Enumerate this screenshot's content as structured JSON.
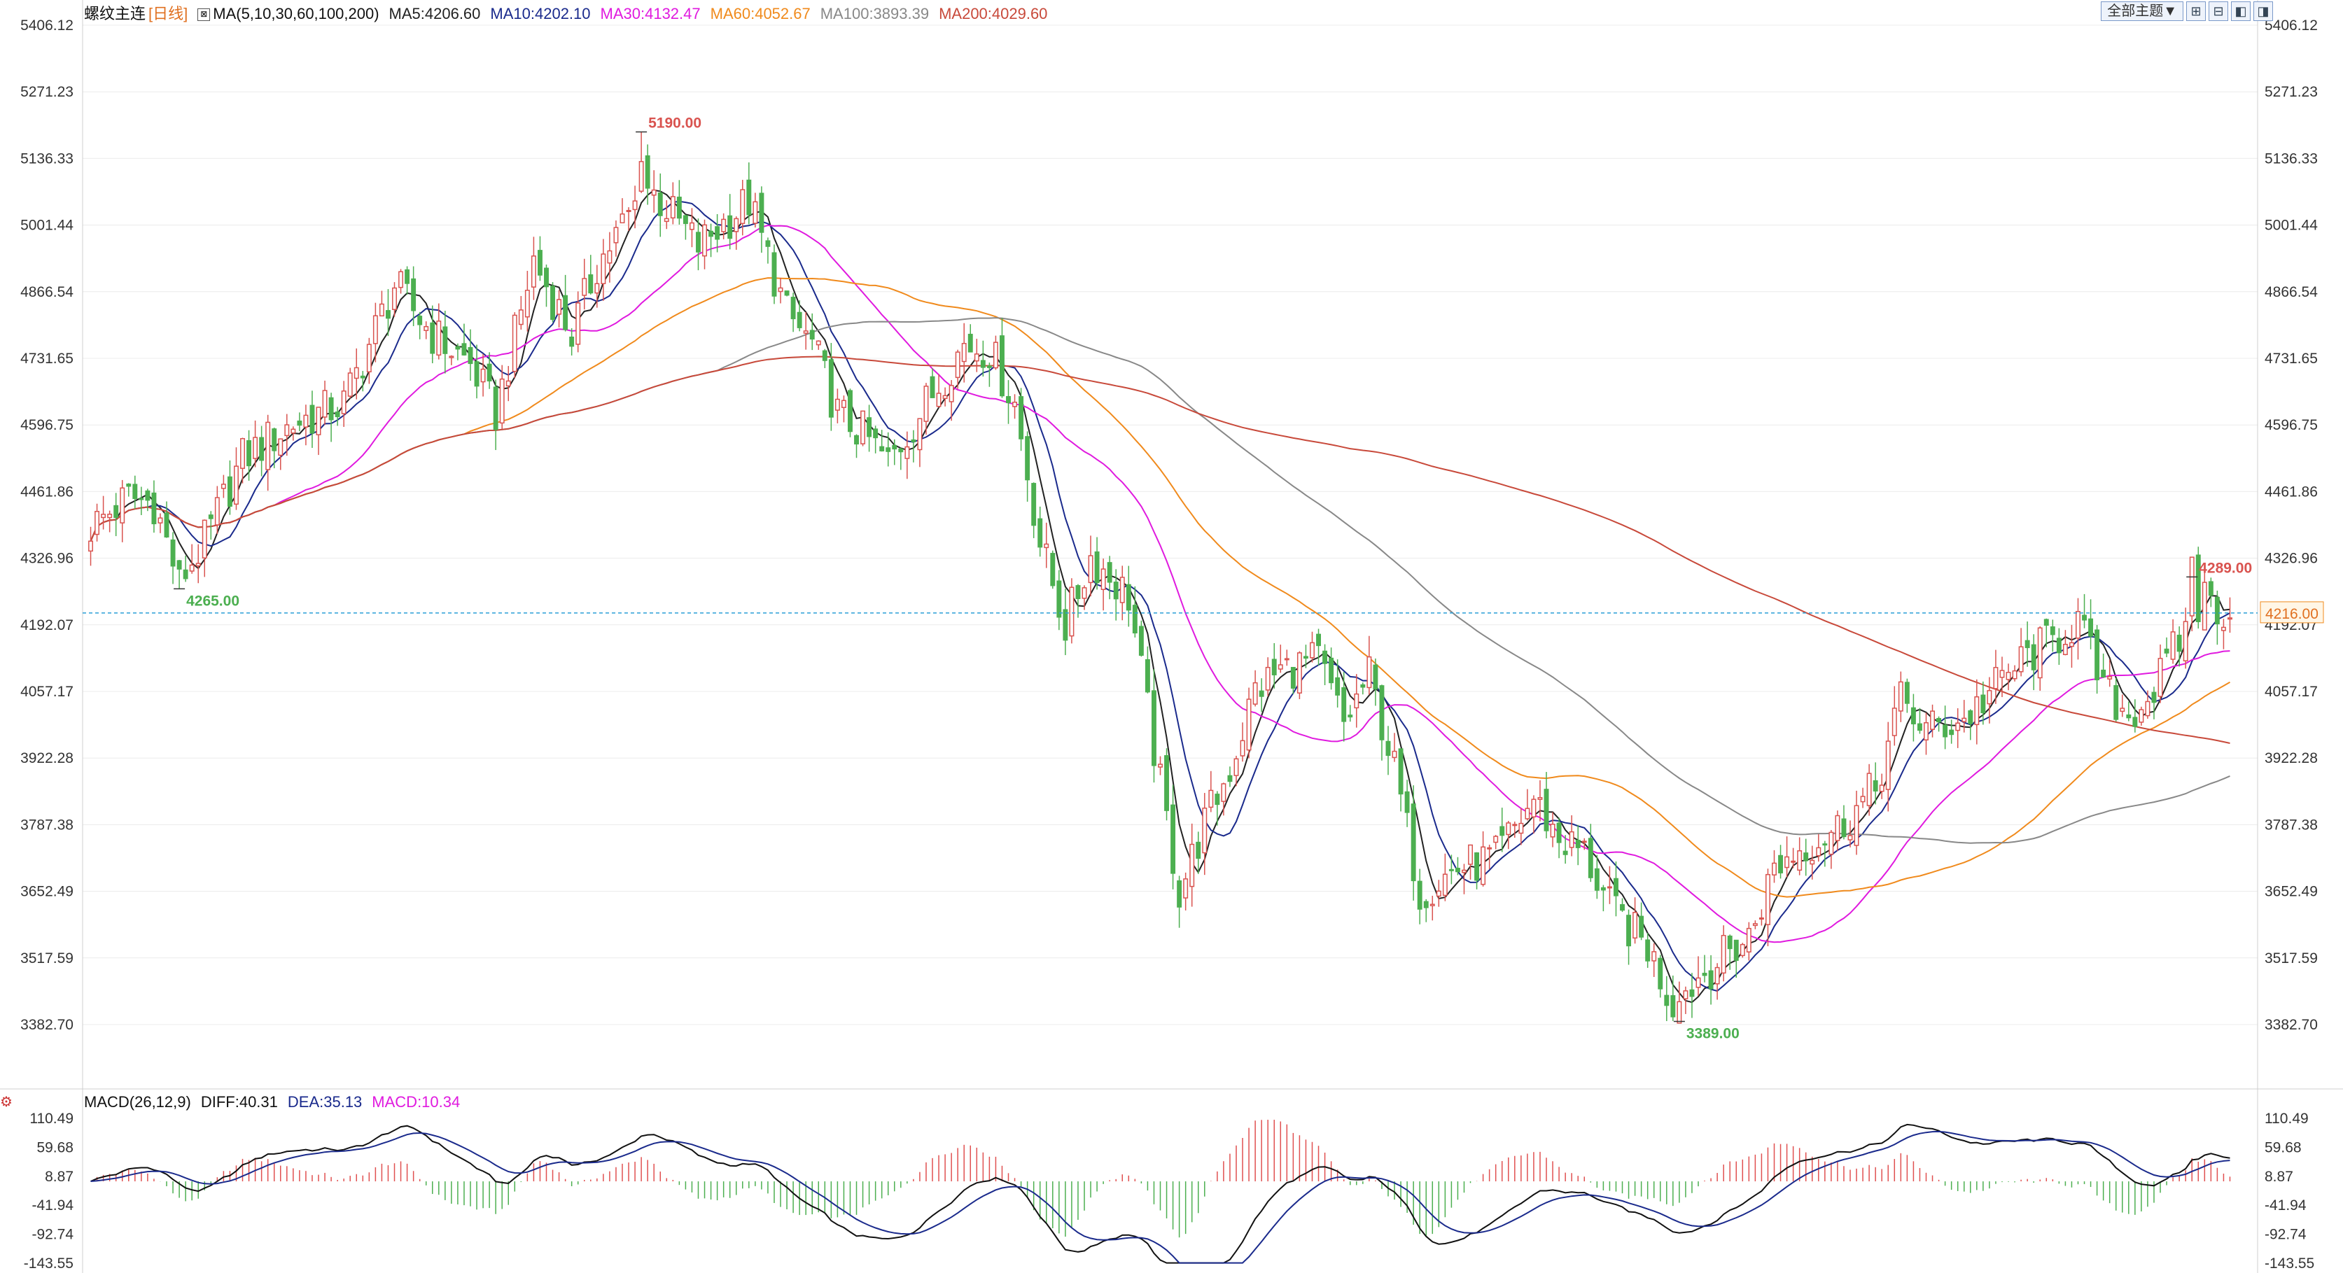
{
  "header": {
    "instrument": "螺纹主连",
    "period": "[日线]",
    "ma_label": "MA(5,10,30,60,100,200)",
    "ma_values": [
      {
        "text": "MA5:4206.60",
        "color": "#222222"
      },
      {
        "text": "MA10:4202.10",
        "color": "#1a2a8c"
      },
      {
        "text": "MA30:4132.47",
        "color": "#e01adf"
      },
      {
        "text": "MA60:4052.67",
        "color": "#f08a1c"
      },
      {
        "text": "MA100:3893.39",
        "color": "#888888"
      },
      {
        "text": "MA200:4029.60",
        "color": "#c8493a"
      }
    ],
    "theme_button": "全部主题▼",
    "icons": [
      "zoom-in-icon",
      "zoom-out-icon",
      "scroll-left-icon",
      "scroll-right-icon"
    ]
  },
  "macd_header": {
    "label": "MACD(26,12,9)",
    "diff": "DIFF:40.31",
    "dea": "DEA:35.13",
    "macd": "MACD:10.34"
  },
  "chart_data": [
    {
      "type": "candlestick",
      "title": "螺纹主连 [日线]",
      "y_ticks": [
        "5406.12",
        "5271.23",
        "5136.33",
        "5001.44",
        "4866.54",
        "4731.65",
        "4596.75",
        "4461.86",
        "4326.96",
        "4192.07",
        "4057.17",
        "3922.28",
        "3787.38",
        "3652.49",
        "3517.59",
        "3382.70"
      ],
      "ylim": [
        3280,
        5420
      ],
      "last_price": "4216.00",
      "current_line": 4216,
      "annotations": [
        {
          "text": "5190.00",
          "index": 87,
          "value": 5190
        },
        {
          "text": "4265.00",
          "index": 14,
          "value": 4265
        },
        {
          "text": "3389.00",
          "index": 251,
          "value": 3389
        },
        {
          "text": "4289.00",
          "index": 332,
          "value": 4289
        }
      ],
      "anchors": [
        {
          "i": 0,
          "p": 4390
        },
        {
          "i": 6,
          "p": 4450
        },
        {
          "i": 10,
          "p": 4440
        },
        {
          "i": 14,
          "p": 4280
        },
        {
          "i": 18,
          "p": 4360
        },
        {
          "i": 24,
          "p": 4530
        },
        {
          "i": 32,
          "p": 4600
        },
        {
          "i": 40,
          "p": 4640
        },
        {
          "i": 48,
          "p": 4880
        },
        {
          "i": 54,
          "p": 4780
        },
        {
          "i": 60,
          "p": 4720
        },
        {
          "i": 64,
          "p": 4620
        },
        {
          "i": 70,
          "p": 4930
        },
        {
          "i": 76,
          "p": 4780
        },
        {
          "i": 80,
          "p": 4920
        },
        {
          "i": 88,
          "p": 5080
        },
        {
          "i": 96,
          "p": 4960
        },
        {
          "i": 104,
          "p": 5050
        },
        {
          "i": 110,
          "p": 4820
        },
        {
          "i": 114,
          "p": 4760
        },
        {
          "i": 118,
          "p": 4620
        },
        {
          "i": 122,
          "p": 4580
        },
        {
          "i": 126,
          "p": 4520
        },
        {
          "i": 132,
          "p": 4640
        },
        {
          "i": 138,
          "p": 4760
        },
        {
          "i": 142,
          "p": 4750
        },
        {
          "i": 146,
          "p": 4640
        },
        {
          "i": 150,
          "p": 4360
        },
        {
          "i": 154,
          "p": 4190
        },
        {
          "i": 158,
          "p": 4330
        },
        {
          "i": 164,
          "p": 4250
        },
        {
          "i": 168,
          "p": 3940
        },
        {
          "i": 172,
          "p": 3650
        },
        {
          "i": 176,
          "p": 3790
        },
        {
          "i": 180,
          "p": 3900
        },
        {
          "i": 184,
          "p": 4060
        },
        {
          "i": 188,
          "p": 4100
        },
        {
          "i": 194,
          "p": 4120
        },
        {
          "i": 198,
          "p": 3990
        },
        {
          "i": 202,
          "p": 4090
        },
        {
          "i": 206,
          "p": 3900
        },
        {
          "i": 210,
          "p": 3650
        },
        {
          "i": 216,
          "p": 3700
        },
        {
          "i": 222,
          "p": 3720
        },
        {
          "i": 228,
          "p": 3840
        },
        {
          "i": 232,
          "p": 3760
        },
        {
          "i": 236,
          "p": 3730
        },
        {
          "i": 240,
          "p": 3620
        },
        {
          "i": 246,
          "p": 3540
        },
        {
          "i": 250,
          "p": 3420
        },
        {
          "i": 254,
          "p": 3480
        },
        {
          "i": 258,
          "p": 3520
        },
        {
          "i": 262,
          "p": 3560
        },
        {
          "i": 266,
          "p": 3700
        },
        {
          "i": 270,
          "p": 3740
        },
        {
          "i": 276,
          "p": 3780
        },
        {
          "i": 282,
          "p": 3860
        },
        {
          "i": 286,
          "p": 4040
        },
        {
          "i": 290,
          "p": 3980
        },
        {
          "i": 296,
          "p": 4000
        },
        {
          "i": 302,
          "p": 4080
        },
        {
          "i": 306,
          "p": 4130
        },
        {
          "i": 310,
          "p": 4160
        },
        {
          "i": 314,
          "p": 4200
        },
        {
          "i": 318,
          "p": 4060
        },
        {
          "i": 322,
          "p": 4010
        },
        {
          "i": 326,
          "p": 4060
        },
        {
          "i": 330,
          "p": 4160
        },
        {
          "i": 334,
          "p": 4250
        },
        {
          "i": 338,
          "p": 4210
        }
      ],
      "bars": 339,
      "ma_series": [
        {
          "name": "MA5",
          "period": 5,
          "color": "#222222"
        },
        {
          "name": "MA10",
          "period": 10,
          "color": "#1a2a8c"
        },
        {
          "name": "MA30",
          "period": 30,
          "color": "#e01adf"
        },
        {
          "name": "MA60",
          "period": 60,
          "color": "#f08a1c"
        },
        {
          "name": "MA100",
          "period": 100,
          "color": "#888888"
        },
        {
          "name": "MA200",
          "period": 200,
          "color": "#c8493a"
        }
      ],
      "colors": {
        "up": "#d9534f",
        "down": "#4caf50",
        "grid": "#ececec",
        "current_line": "#2a9fd6",
        "axis_text": "#333333"
      }
    },
    {
      "type": "macd",
      "y_ticks": [
        "110.49",
        "59.68",
        "8.87",
        "-41.94",
        "-92.74",
        "-143.55"
      ],
      "ylim": [
        -143.55,
        110.49
      ],
      "series": [
        {
          "name": "DIFF",
          "color": "#111111"
        },
        {
          "name": "DEA",
          "color": "#1a2a8c"
        },
        {
          "name": "MACD",
          "color_up": "#e05050",
          "color_down": "#4caf50"
        }
      ]
    }
  ]
}
